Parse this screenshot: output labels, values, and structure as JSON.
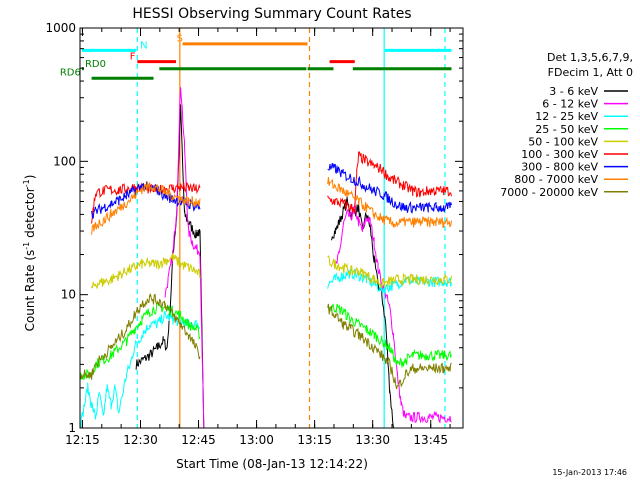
{
  "chart_data": {
    "type": "line",
    "title": "HESSI Observing Summary Count Rates",
    "xlabel": "Start Time (08-Jan-13 12:14:22)",
    "ylabel_main": "Count Rate (s",
    "ylabel_sup1": "-1",
    "ylabel_mid": " detector",
    "ylabel_sup2": "-1",
    "ylabel_end": ")",
    "y_scale": "log",
    "ylim": [
      1,
      1000
    ],
    "xlim": [
      "12:14:22",
      "13:53:20"
    ],
    "x_ticks": [
      "12:15",
      "12:30",
      "12:45",
      "13:00",
      "13:15",
      "13:30",
      "13:45"
    ],
    "x_tick_minutes": [
      0.63,
      15.63,
      30.63,
      45.63,
      60.63,
      75.63,
      90.63
    ],
    "y_ticks": [
      "1",
      "10",
      "100",
      "1000"
    ],
    "y_tick_values": [
      1,
      10,
      100,
      1000
    ],
    "timestamp": "15-Jan-2013 17:46",
    "legend_lines": [
      "Det 1,3,5,6,7,9,",
      "FDecim 1, Att 0"
    ],
    "series": [
      {
        "name": "3 - 6 keV",
        "color": "#000000",
        "x": [
          0,
          14,
          14.5,
          18,
          20,
          21.5,
          22.5,
          23.3,
          24,
          25,
          26,
          27,
          28,
          30,
          30.5,
          31,
          32,
          60,
          62,
          63,
          65,
          66,
          67,
          69,
          70,
          72,
          73,
          74,
          75,
          76,
          77,
          78,
          79,
          80,
          81,
          82,
          83,
          84,
          87,
          88,
          96
        ],
        "y": [
          null,
          null,
          3,
          3.5,
          4,
          4.5,
          4,
          8,
          20,
          40,
          250,
          40,
          35,
          28,
          30,
          28,
          1,
          null,
          null,
          null,
          28,
          30,
          35,
          50,
          40,
          45,
          30,
          40,
          32,
          18,
          12,
          10,
          6,
          2,
          1,
          1,
          1,
          1,
          1,
          1,
          1
        ]
      },
      {
        "name": "6 - 12 keV",
        "color": "#ff00ff",
        "x": [
          0,
          21,
          22,
          23,
          24,
          25,
          26,
          27,
          27.5,
          28,
          29,
          30,
          31,
          32,
          65,
          66,
          67,
          68,
          69,
          70,
          71,
          72,
          73,
          74,
          75,
          76,
          77,
          78,
          79,
          80,
          81,
          82,
          83,
          84,
          88,
          96
        ],
        "y": [
          null,
          null,
          10,
          14,
          20,
          45,
          380,
          130,
          60,
          30,
          25,
          22,
          21,
          1,
          null,
          16,
          20,
          33,
          40,
          38,
          45,
          35,
          30,
          38,
          35,
          25,
          16,
          12,
          10,
          8,
          5,
          2.5,
          1.5,
          1.2,
          1.2,
          1.2
        ]
      },
      {
        "name": "12 - 25 keV",
        "color": "#00ffff",
        "x": [
          0,
          2,
          3,
          4,
          5,
          6,
          7,
          8,
          9,
          10,
          11,
          12,
          13,
          14,
          16,
          18,
          20,
          22,
          24,
          26,
          28,
          30,
          31,
          32,
          63,
          64,
          66,
          68,
          70,
          72,
          74,
          76,
          78,
          80,
          82,
          84,
          86,
          88,
          90,
          92,
          94,
          96
        ],
        "y": [
          1,
          2,
          1.5,
          1.2,
          1.8,
          1.2,
          2,
          1.5,
          2,
          1.3,
          1.8,
          2.5,
          3,
          4,
          5,
          6,
          6,
          7,
          6.5,
          6.2,
          6,
          6,
          5.8,
          null,
          null,
          12,
          13,
          14,
          14.5,
          14,
          13,
          12,
          11,
          11.5,
          12,
          13,
          12.5,
          12.5,
          12.5,
          12.5,
          12.5,
          12.5
        ]
      },
      {
        "name": "25 - 50 keV",
        "color": "#00ff00",
        "x": [
          0,
          3,
          4,
          8,
          12,
          14,
          16,
          18,
          20,
          22,
          24,
          26,
          28,
          30,
          31,
          32,
          63,
          64,
          66,
          68,
          70,
          72,
          74,
          76,
          78,
          80,
          82,
          84,
          86,
          88,
          90,
          94,
          96
        ],
        "y": [
          2.5,
          2.5,
          3,
          3.5,
          4.5,
          5.5,
          6.5,
          7.5,
          8,
          8,
          7.5,
          7,
          6,
          5.5,
          5,
          null,
          null,
          8,
          8,
          7.5,
          6.5,
          6,
          5.5,
          5,
          4.5,
          4,
          3,
          3.2,
          3.5,
          3.5,
          3.5,
          3.5,
          3.5
        ]
      },
      {
        "name": "50 - 100 keV",
        "color": "#cccc00",
        "x": [
          0,
          2,
          3,
          4,
          6,
          8,
          10,
          12,
          14,
          16,
          18,
          20,
          22,
          24,
          26,
          28,
          30,
          31,
          32,
          63,
          64,
          66,
          68,
          70,
          72,
          74,
          76,
          78,
          80,
          82,
          84,
          86,
          88,
          90,
          94,
          96
        ],
        "y": [
          null,
          null,
          11,
          12,
          12.5,
          13,
          14,
          15,
          16,
          17,
          17,
          17,
          18,
          19,
          17,
          16,
          15,
          14,
          null,
          null,
          18,
          17,
          16,
          15,
          15,
          14,
          13,
          12,
          12.5,
          13,
          13,
          13,
          13,
          13,
          13,
          13
        ]
      },
      {
        "name": "100 - 300 keV",
        "color": "#ff0000",
        "x": [
          0,
          2.5,
          3,
          3.5,
          4,
          6,
          8,
          10,
          12,
          14,
          16,
          18,
          20,
          22,
          24,
          26,
          28,
          30,
          31,
          32,
          63,
          64,
          66,
          68,
          70,
          71,
          71.5,
          72,
          74,
          76,
          78,
          80,
          82,
          84,
          86,
          88,
          90,
          92,
          94,
          96
        ],
        "y": [
          null,
          null,
          36,
          45,
          58,
          60,
          61,
          61,
          62,
          64,
          63,
          62,
          61,
          62,
          63,
          64,
          63,
          62,
          62,
          null,
          null,
          52,
          50,
          48,
          45,
          44,
          80,
          110,
          100,
          92,
          87,
          75,
          70,
          65,
          60,
          58,
          60,
          60,
          60,
          60
        ]
      },
      {
        "name": "300 - 800 keV",
        "color": "#0000ff",
        "x": [
          0,
          2,
          3,
          4,
          6,
          8,
          10,
          12,
          14,
          16,
          18,
          20,
          22,
          24,
          26,
          28,
          30,
          31,
          32,
          63,
          64,
          66,
          68,
          70,
          72,
          74,
          76,
          78,
          80,
          82,
          84,
          86,
          88,
          90,
          92,
          94,
          96
        ],
        "y": [
          null,
          null,
          40,
          42,
          45,
          48,
          51,
          55,
          60,
          65,
          63,
          61,
          55,
          52,
          50,
          48,
          46,
          45,
          null,
          null,
          90,
          88,
          80,
          75,
          70,
          65,
          60,
          57,
          52,
          47,
          45,
          45,
          45,
          45,
          45,
          45,
          45
        ]
      },
      {
        "name": "800 - 7000 keV",
        "color": "#ff8000",
        "x": [
          0,
          2,
          3,
          4,
          6,
          8,
          10,
          12,
          14,
          16,
          18,
          20,
          22,
          24,
          26,
          28,
          30,
          31,
          32,
          63,
          64,
          66,
          68,
          70,
          72,
          74,
          76,
          78,
          80,
          82,
          84,
          86,
          88,
          90,
          92,
          94,
          96
        ],
        "y": [
          null,
          null,
          30,
          33,
          36,
          40,
          44,
          49,
          55,
          62,
          66,
          63,
          59,
          55,
          52,
          50,
          50,
          50,
          null,
          null,
          70,
          65,
          60,
          55,
          50,
          45,
          40,
          37,
          35,
          34,
          35,
          35,
          35,
          35,
          35,
          35,
          35
        ]
      },
      {
        "name": "7000 - 20000 keV",
        "color": "#808000",
        "x": [
          0,
          3,
          4,
          8,
          12,
          14,
          16,
          18,
          20,
          22,
          24,
          26,
          28,
          30,
          31,
          32,
          63,
          64,
          66,
          68,
          70,
          72,
          74,
          76,
          78,
          80,
          82,
          84,
          86,
          88,
          90,
          94,
          96
        ],
        "y": [
          2.5,
          2.5,
          3,
          4,
          5.5,
          7,
          8.5,
          9.5,
          9,
          8.5,
          7,
          6,
          5,
          4,
          3.5,
          null,
          null,
          8,
          7,
          6,
          5.5,
          5,
          4.5,
          4,
          3.5,
          3,
          2,
          2.5,
          2.8,
          2.8,
          2.8,
          2.8,
          2.8
        ]
      }
    ],
    "annotations": [
      {
        "text": "N",
        "color": "#00ffff",
        "x": 16.5,
        "y": 700
      },
      {
        "text": "F",
        "color": "#ff0000",
        "x": 13.6,
        "y": 580
      },
      {
        "text": "S",
        "color": "#ff8000",
        "x": 25.8,
        "y": 790
      },
      {
        "text": "RD0",
        "color": "#008000",
        "x": 4.0,
        "y": 510
      },
      {
        "text": "RD6",
        "color": "#008000",
        "x": -2.5,
        "y": 440
      }
    ],
    "flag_bars": [
      {
        "label": "N",
        "color": "#00ffff",
        "y": 680,
        "segments": [
          [
            0.5,
            14.5
          ],
          [
            78.8,
            96.0
          ]
        ]
      },
      {
        "label": "F",
        "color": "#ff0000",
        "y": 560,
        "segments": [
          [
            14.8,
            24.8
          ],
          [
            64.5,
            71.0
          ]
        ]
      },
      {
        "label": "S",
        "color": "#ff8000",
        "y": 760,
        "segments": [
          [
            26.5,
            58.8
          ]
        ]
      },
      {
        "label": "RD0",
        "color": "#008000",
        "y": 495,
        "segments": [
          [
            0.5,
            1.0
          ],
          [
            20.5,
            58.5
          ],
          [
            58.8,
            65.5
          ],
          [
            70.5,
            96.0
          ]
        ]
      },
      {
        "label": "RD6",
        "color": "#008000",
        "y": 420,
        "segments": [
          [
            3.0,
            19.0
          ]
        ]
      }
    ],
    "vertical_lines": [
      {
        "x": 14.8,
        "color": "#00ffff",
        "style": "dashed"
      },
      {
        "x": 25.8,
        "color": "#ff8000",
        "style": "solid"
      },
      {
        "x": 59.3,
        "color": "#ff8000",
        "style": "dashed"
      },
      {
        "x": 78.6,
        "color": "#00ffff",
        "style": "solid"
      },
      {
        "x": 94.3,
        "color": "#00ffff",
        "style": "dashed"
      }
    ],
    "grid": false,
    "legend_position": "right"
  }
}
